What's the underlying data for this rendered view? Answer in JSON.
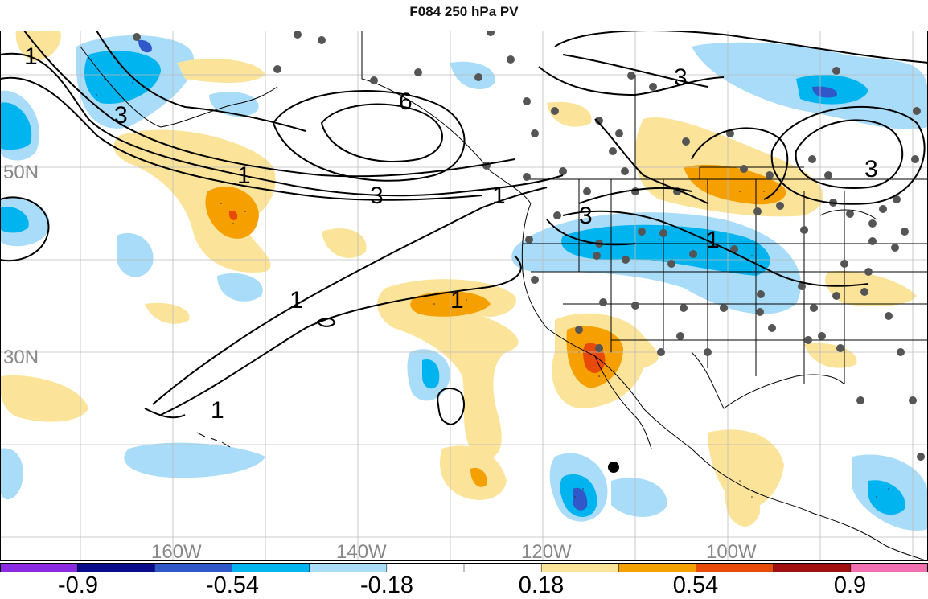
{
  "title": "F084 250 hPa PV",
  "lat_labels": [
    "50N",
    "30N"
  ],
  "lon_labels": [
    "160W",
    "140W",
    "120W",
    "100W"
  ],
  "contour_labels": [
    "1",
    "3",
    "6",
    "3",
    "1",
    "3",
    "1",
    "3",
    "1",
    "1",
    "1",
    "3"
  ],
  "colorbar": {
    "labels": [
      "-0.9",
      "-0.54",
      "-0.18",
      "0.18",
      "0.54",
      "0.9"
    ],
    "colors": [
      "#8a2be2",
      "#0a0a8c",
      "#3058c8",
      "#00b4f0",
      "#a8dcf8",
      "#ffffff",
      "#ffffff",
      "#fbe49a",
      "#f5a000",
      "#e84a0a",
      "#a01010",
      "#f070b0"
    ]
  },
  "palette": {
    "light_blue": "#a8dcf8",
    "blue": "#00b4f0",
    "dark_blue": "#3058c8",
    "light_yellow": "#fbe49a",
    "orange": "#f5a000",
    "red_orange": "#e84a0a",
    "station_dot": "#555555",
    "grid": "#bbbbbb",
    "label_grey": "#888888"
  }
}
